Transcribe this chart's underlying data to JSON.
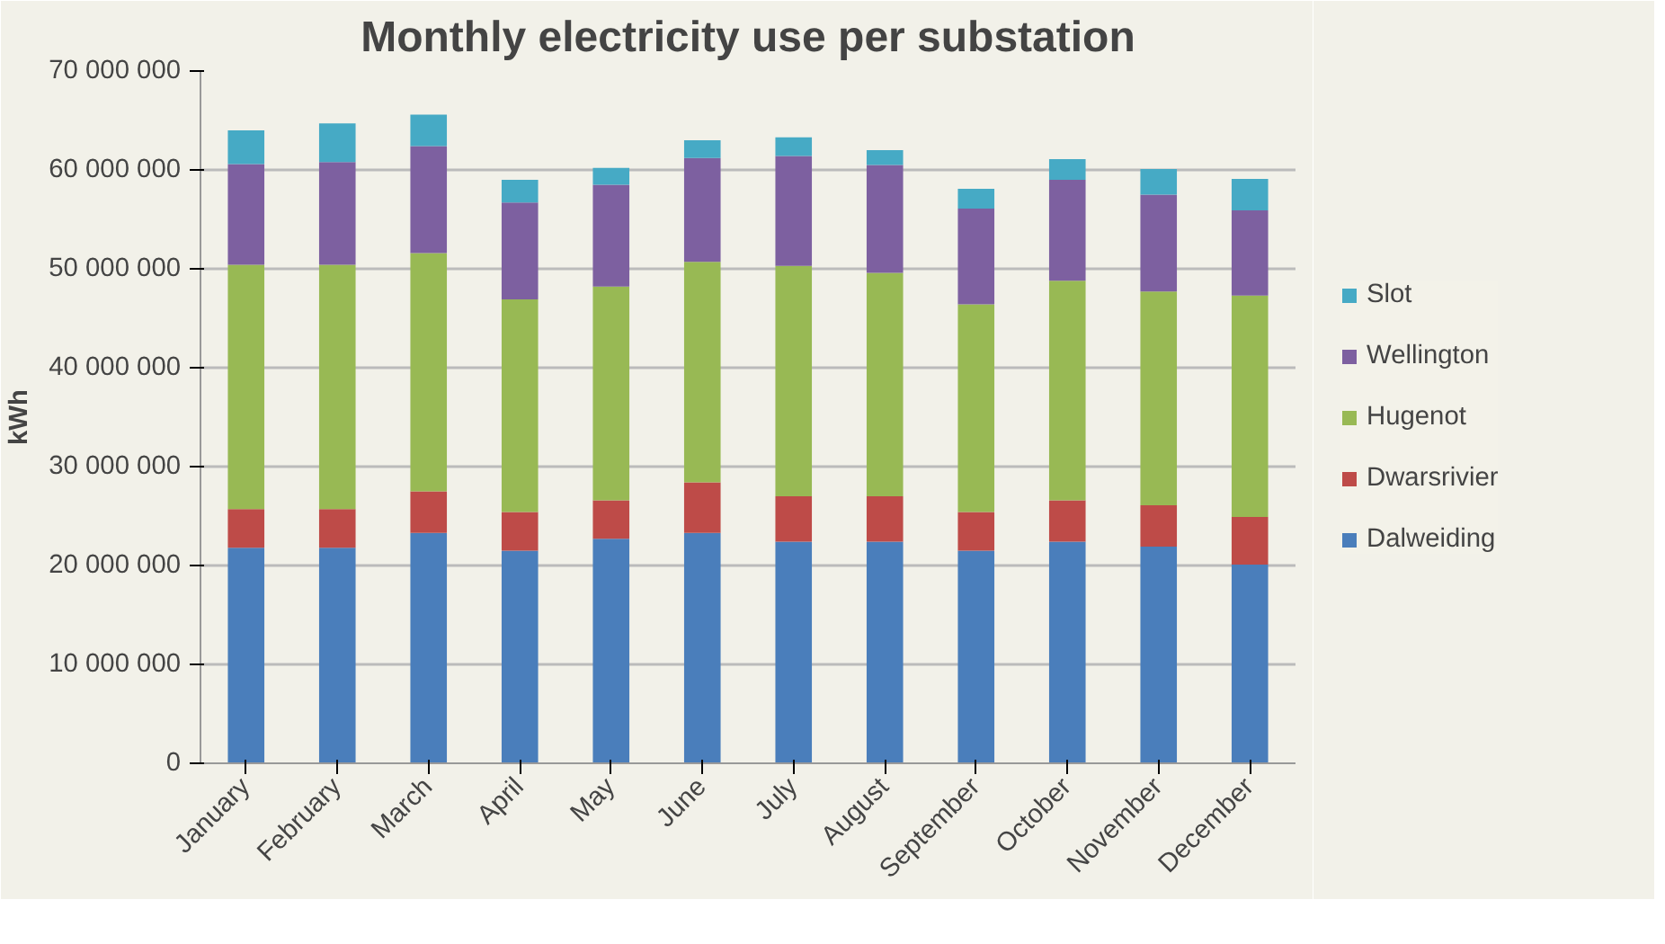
{
  "chart_data": {
    "type": "bar",
    "title": "Monthly electricity use per substation",
    "ylabel": "kWh",
    "categories": [
      "January",
      "February",
      "March",
      "April",
      "May",
      "June",
      "July",
      "August",
      "September",
      "October",
      "November",
      "December"
    ],
    "stacked": true,
    "series": [
      {
        "name": "Dalweiding",
        "color": "#4a7ebb",
        "values": [
          21800000,
          21800000,
          23300000,
          21500000,
          22700000,
          23300000,
          22400000,
          22400000,
          21500000,
          22400000,
          21900000,
          20100000
        ]
      },
      {
        "name": "Dwarsrivier",
        "color": "#be4b48",
        "values": [
          3900000,
          3900000,
          4200000,
          3900000,
          3900000,
          5100000,
          4600000,
          4600000,
          3900000,
          4200000,
          4200000,
          4800000
        ]
      },
      {
        "name": "Hugenot",
        "color": "#98b954",
        "values": [
          24700000,
          24700000,
          24100000,
          21500000,
          21600000,
          22300000,
          23300000,
          22600000,
          21000000,
          22200000,
          21600000,
          22400000
        ]
      },
      {
        "name": "Wellington",
        "color": "#7d60a0",
        "values": [
          10200000,
          10400000,
          10800000,
          9800000,
          10300000,
          10500000,
          11100000,
          10900000,
          9700000,
          10200000,
          9800000,
          8600000
        ]
      },
      {
        "name": "Slot",
        "color": "#46aac5",
        "values": [
          3400000,
          3900000,
          3200000,
          2300000,
          1700000,
          1800000,
          1900000,
          1500000,
          2000000,
          2100000,
          2600000,
          3200000
        ]
      }
    ],
    "ylim": [
      0,
      70000000
    ],
    "yticks": [
      0,
      {
        "value": 10000000,
        "label": "10 000 000"
      },
      {
        "value": 20000000,
        "label": "20 000 000"
      },
      {
        "value": 30000000,
        "label": "30 000 000"
      },
      {
        "value": 40000000,
        "label": "40 000 000"
      },
      {
        "value": 50000000,
        "label": "50 000 000"
      },
      {
        "value": 60000000,
        "label": "60 000 000"
      },
      {
        "value": 70000000,
        "label": "70 000 000"
      }
    ],
    "grid": "y",
    "legend": "right"
  }
}
